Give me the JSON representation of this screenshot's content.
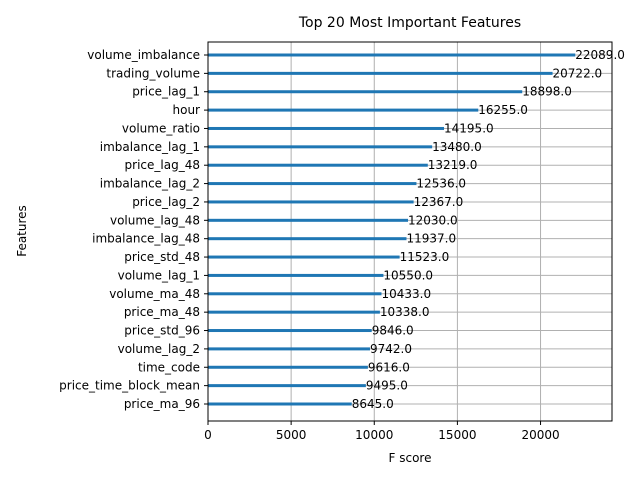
{
  "chart_data": {
    "type": "bar",
    "orientation": "horizontal",
    "title": "Top 20 Most Important Features",
    "xlabel": "F score",
    "ylabel": "Features",
    "grid": true,
    "xlim": [
      0,
      24298
    ],
    "xticks": [
      0,
      5000,
      10000,
      15000,
      20000
    ],
    "bar_color": "#1f77b4",
    "categories": [
      "volume_imbalance",
      "trading_volume",
      "price_lag_1",
      "hour",
      "volume_ratio",
      "imbalance_lag_1",
      "price_lag_48",
      "imbalance_lag_2",
      "price_lag_2",
      "volume_lag_48",
      "imbalance_lag_48",
      "price_std_48",
      "volume_lag_1",
      "volume_ma_48",
      "price_ma_48",
      "price_std_96",
      "volume_lag_2",
      "time_code",
      "price_time_block_mean",
      "price_ma_96"
    ],
    "values": [
      22089,
      20722,
      18898,
      16255,
      14195,
      13480,
      13219,
      12536,
      12367,
      12030,
      11937,
      11523,
      10550,
      10433,
      10338,
      9846,
      9742,
      9616,
      9495,
      8645
    ],
    "value_labels": [
      "22089.0",
      "20722.0",
      "18898.0",
      "16255.0",
      "14195.0",
      "13480.0",
      "13219.0",
      "12536.0",
      "12367.0",
      "12030.0",
      "11937.0",
      "11523.0",
      "10550.0",
      "10433.0",
      "10338.0",
      "9846.0",
      "9742.0",
      "9616.0",
      "9495.0",
      "8645.0"
    ]
  }
}
